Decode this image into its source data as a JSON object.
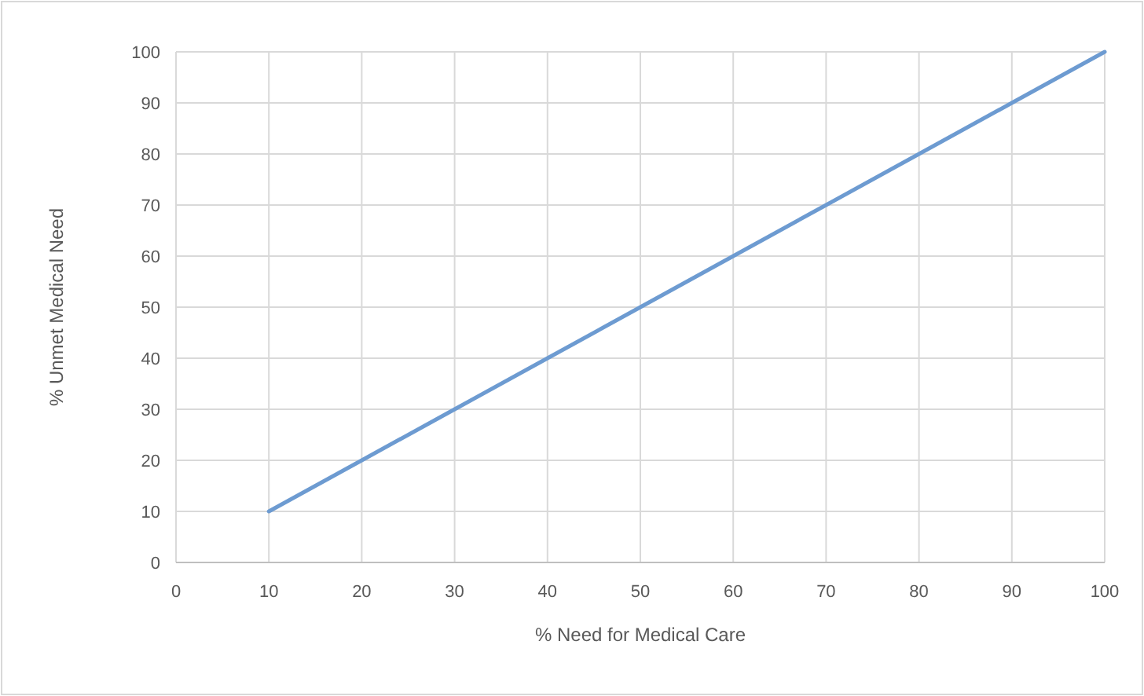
{
  "chart_data": {
    "type": "line",
    "xlabel": "% Need for Medical Care",
    "ylabel": "% Unmet Medical Need",
    "x": [
      10,
      20,
      30,
      40,
      50,
      60,
      70,
      80,
      90,
      100
    ],
    "series": [
      {
        "color": "#6d9bd1",
        "values": [
          10,
          20,
          30,
          40,
          50,
          60,
          70,
          80,
          90,
          100
        ]
      }
    ],
    "xlim": [
      0,
      100
    ],
    "xticks": [
      0,
      10,
      20,
      30,
      40,
      50,
      60,
      70,
      80,
      90,
      100
    ],
    "ylim": [
      0,
      100
    ],
    "yticks": [
      0,
      10,
      20,
      30,
      40,
      50,
      60,
      70,
      80,
      90,
      100
    ],
    "grid": true,
    "marker": "none",
    "line_style": "solid"
  }
}
